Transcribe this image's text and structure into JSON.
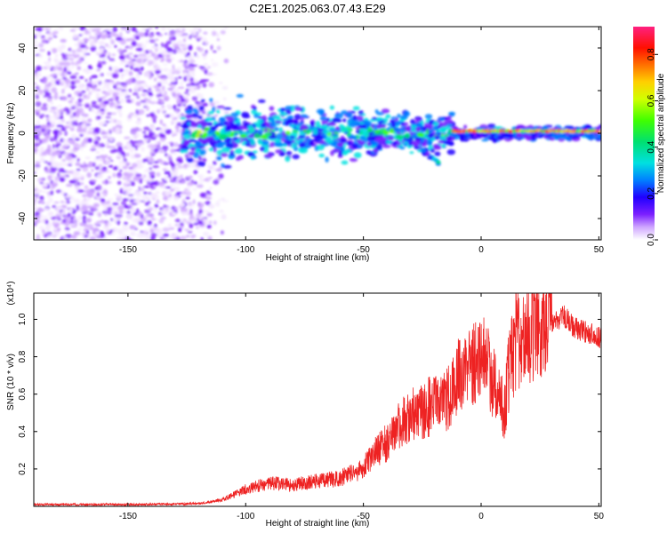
{
  "figure_title": "C2E1.2025.063.07.43.E29",
  "chart_data": [
    {
      "type": "heatmap",
      "title": "",
      "xlabel": "Height of straight line (km)",
      "ylabel": "Frequency (Hz)",
      "xlim": [
        -190,
        51
      ],
      "ylim": [
        -50,
        50
      ],
      "xticks": [
        -150,
        -100,
        -50,
        0,
        50
      ],
      "yticks": [
        -40,
        -20,
        0,
        20,
        40
      ],
      "colorbar": {
        "label": "Normalized spectral amplitude",
        "range": [
          0,
          0.92
        ],
        "ticks": [
          "0.0",
          "0.2",
          "0.4",
          "0.6",
          "0.8"
        ],
        "colors": [
          "#f4e8ff",
          "#cfa6ff",
          "#7b1fff",
          "#2000ff",
          "#0080ff",
          "#00e0e0",
          "#00e070",
          "#40ff00",
          "#d0ff00",
          "#ffd000",
          "#ff7000",
          "#ff1000",
          "#ff2080"
        ]
      },
      "regions": [
        {
          "name": "noise",
          "x_range": [
            -190,
            -110
          ],
          "f_range": [
            -50,
            50
          ],
          "level": 0.05
        },
        {
          "name": "signal-band",
          "x_range": [
            -127,
            51
          ],
          "f_center": 0,
          "f_halfwidth": 6,
          "level": 0.35
        },
        {
          "name": "strong-tail",
          "x_range": [
            -12,
            51
          ],
          "f_center": 1,
          "f_halfwidth": 2,
          "level": 0.85
        },
        {
          "name": "branch",
          "x_range": [
            -28,
            -18
          ],
          "f_range": [
            -14,
            -6
          ],
          "level": 0.3
        }
      ]
    },
    {
      "type": "line",
      "title": "",
      "xlabel": "Height of straight line (km)",
      "ylabel": "SNR (10 * v/v)",
      "scale_label": "(x10⁴)",
      "xlim": [
        -190,
        51
      ],
      "ylim": [
        0,
        1.14
      ],
      "xticks": [
        -150,
        -100,
        -50,
        0,
        50
      ],
      "yticks": [
        "0.2",
        "0.4",
        "0.6",
        "0.8",
        "1.0"
      ],
      "color": "#ee2222",
      "envelope": {
        "x": [
          -190,
          -140,
          -120,
          -110,
          -100,
          -90,
          -80,
          -70,
          -60,
          -50,
          -45,
          -40,
          -35,
          -30,
          -25,
          -20,
          -15,
          -12,
          -10,
          -5,
          0,
          5,
          8,
          10,
          12,
          15,
          20,
          25,
          30,
          35,
          40,
          45,
          51
        ],
        "y": [
          0.01,
          0.01,
          0.015,
          0.03,
          0.08,
          0.11,
          0.1,
          0.12,
          0.13,
          0.18,
          0.25,
          0.3,
          0.38,
          0.42,
          0.45,
          0.48,
          0.5,
          0.55,
          0.6,
          0.65,
          0.72,
          0.6,
          0.5,
          0.45,
          0.65,
          0.78,
          0.82,
          0.86,
          0.96,
          1.02,
          0.95,
          0.93,
          0.9
        ]
      }
    }
  ]
}
